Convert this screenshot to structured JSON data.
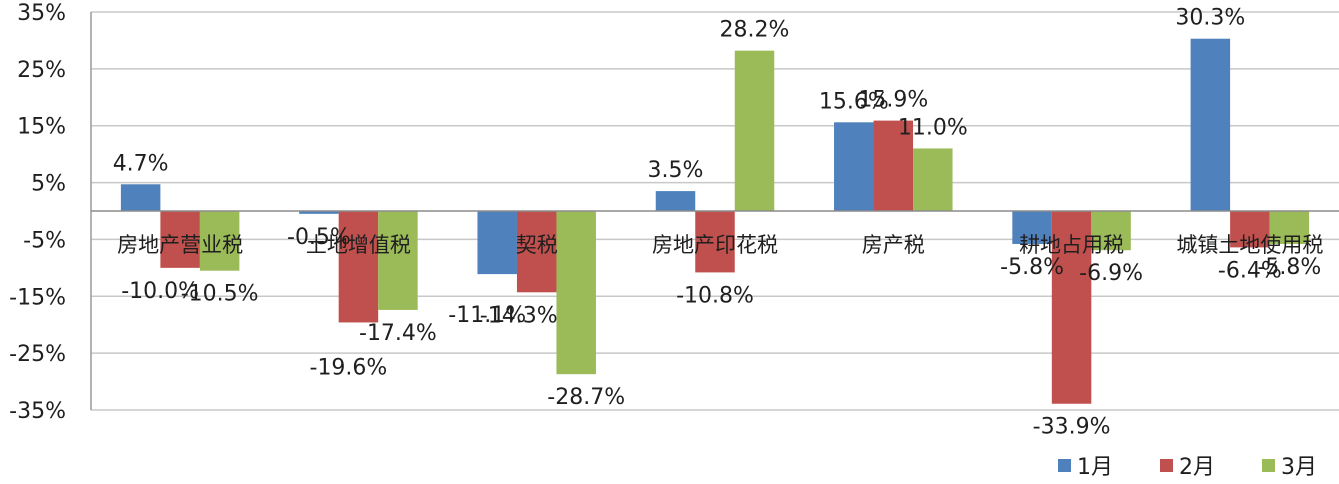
{
  "chart_data": {
    "type": "bar",
    "title": "",
    "xlabel": "",
    "ylabel": "",
    "ylim": [
      -35,
      35
    ],
    "yticks": [
      35,
      25,
      15,
      5,
      -5,
      -15,
      -25,
      -35
    ],
    "ytick_labels": [
      "35%",
      "25%",
      "15%",
      "5%",
      "-5%",
      "-15%",
      "-25%",
      "-35%"
    ],
    "grid": true,
    "legend_position": "bottom-right",
    "categories": [
      "房地产营业税",
      "土地增值税",
      "契税",
      "房地产印花税",
      "房产税",
      "耕地占用税",
      "城镇土地使用税"
    ],
    "series": [
      {
        "name": "1月",
        "color": "#4F81BD",
        "values": [
          4.7,
          -0.5,
          -11.1,
          3.5,
          15.6,
          -5.8,
          30.3
        ],
        "labels": [
          "4.7%",
          "-0.5%",
          "-11.1%",
          "3.5%",
          "15.6%",
          "-5.8%",
          "30.3%"
        ]
      },
      {
        "name": "2月",
        "color": "#C0504D",
        "values": [
          -10.0,
          -19.6,
          -14.3,
          -10.8,
          15.9,
          -33.9,
          -6.4
        ],
        "labels": [
          "-10.0%",
          "-19.6%",
          "-14.3%",
          "-10.8%",
          "15.9%",
          "-33.9%",
          "-6.4%"
        ]
      },
      {
        "name": "3月",
        "color": "#9BBB59",
        "values": [
          -10.5,
          -17.4,
          -28.7,
          28.2,
          11.0,
          -6.9,
          -5.8
        ],
        "labels": [
          "-10.5%",
          "-17.4%",
          "-28.7%",
          "28.2%",
          "11.0%",
          "-6.9%",
          "-5.8%"
        ]
      }
    ]
  }
}
